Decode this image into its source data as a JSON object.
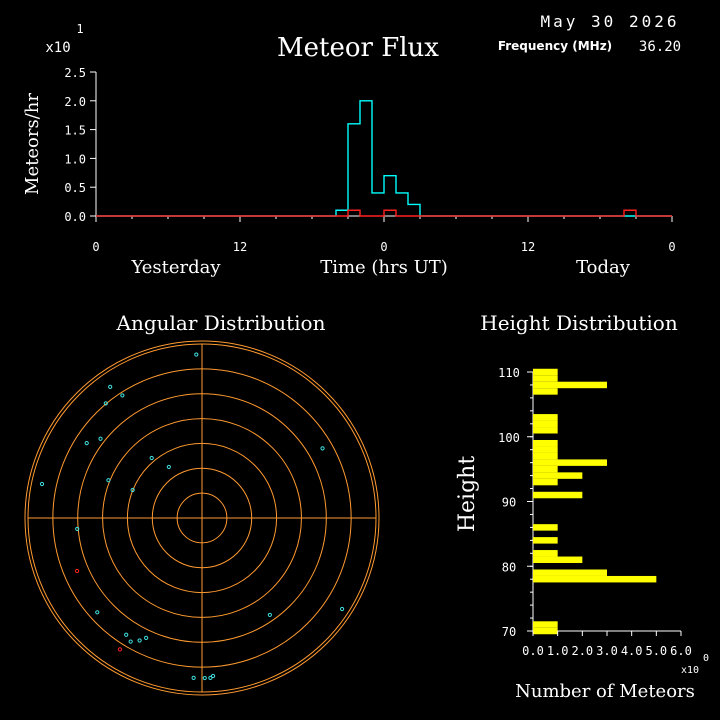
{
  "header": {
    "date": "May 30 2026",
    "frequency_label": "Frequency (MHz)",
    "frequency_value": "36.20"
  },
  "chart_data": [
    {
      "type": "line",
      "title": "Meteor Flux",
      "xlabel": "Time (hrs UT)",
      "ylabel": "Meteors/hr",
      "scale_label": "x10",
      "scale_exponent": "1",
      "x_tick_labels": [
        "0",
        "12",
        "0",
        "12",
        "0"
      ],
      "x_day_labels": [
        "Yesterday",
        "Today"
      ],
      "y_tick_labels": [
        "0.0",
        "0.5",
        "1.0",
        "1.5",
        "2.0",
        "2.5"
      ],
      "ylim": [
        0,
        2.5
      ],
      "xlim": [
        -24,
        24
      ],
      "bin_hours": 1,
      "series": [
        {
          "color": "#00ffff",
          "x": [
            -24,
            -23,
            -22,
            -21,
            -20,
            -19,
            -18,
            -17,
            -16,
            -15,
            -14,
            -13,
            -12,
            -11,
            -10,
            -9,
            -8,
            -7,
            -6,
            -5,
            -4,
            -3,
            -2,
            -1,
            0,
            1,
            2,
            3,
            4,
            5,
            6,
            7,
            8,
            9,
            10,
            11,
            12,
            13,
            14,
            15,
            16,
            17,
            18,
            19,
            20,
            21,
            22,
            23
          ],
          "values": [
            0,
            0,
            0,
            0,
            0,
            0,
            0,
            0,
            0,
            0,
            0,
            0,
            0,
            0,
            0,
            0,
            0,
            0,
            0,
            0,
            0.1,
            1.6,
            2.0,
            0.4,
            0.7,
            0.4,
            0.2,
            0,
            0,
            0,
            0,
            0,
            0,
            0,
            0,
            0,
            0,
            0,
            0,
            0,
            0,
            0,
            0,
            0,
            0,
            0,
            0,
            0
          ]
        },
        {
          "color": "#ff2020",
          "x": [
            -24,
            -23,
            -22,
            -21,
            -20,
            -19,
            -18,
            -17,
            -16,
            -15,
            -14,
            -13,
            -12,
            -11,
            -10,
            -9,
            -8,
            -7,
            -6,
            -5,
            -4,
            -3,
            -2,
            -1,
            0,
            1,
            2,
            3,
            4,
            5,
            6,
            7,
            8,
            9,
            10,
            11,
            12,
            13,
            14,
            15,
            16,
            17,
            18,
            19,
            20,
            21,
            22,
            23
          ],
          "values": [
            0,
            0,
            0,
            0,
            0,
            0,
            0,
            0,
            0,
            0,
            0,
            0,
            0,
            0,
            0,
            0,
            0,
            0,
            0,
            0,
            0,
            0.1,
            0,
            0,
            0.1,
            0,
            0,
            0,
            0,
            0,
            0,
            0,
            0,
            0,
            0,
            0,
            0,
            0,
            0,
            0,
            0,
            0,
            0,
            0,
            0.1,
            0,
            0,
            0
          ]
        }
      ]
    },
    {
      "type": "scatter",
      "title": "Angular Distribution",
      "ring_count": 7,
      "ring_color": "#ff9a30",
      "point_color": "#40e0e0",
      "red_point_color": "#ff2020",
      "points": [
        {
          "az": -2,
          "r": 0.94
        },
        {
          "az": -35,
          "r": 0.92
        },
        {
          "az": -40,
          "r": 0.86
        },
        {
          "az": -33,
          "r": 0.84
        },
        {
          "az": -57,
          "r": 0.79
        },
        {
          "az": -52,
          "r": 0.74
        },
        {
          "az": -78,
          "r": 0.94
        },
        {
          "az": -68,
          "r": 0.58
        },
        {
          "az": -40,
          "r": 0.45
        },
        {
          "az": -33,
          "r": 0.35
        },
        {
          "az": -68,
          "r": 0.43
        },
        {
          "az": -95,
          "r": 0.72
        },
        {
          "az": 60,
          "r": 0.8
        },
        {
          "az": 145,
          "r": 0.68
        },
        {
          "az": 123,
          "r": 0.96
        },
        {
          "az": 210,
          "r": 0.82
        },
        {
          "az": 213,
          "r": 0.8
        },
        {
          "az": 207,
          "r": 0.79
        },
        {
          "az": 205,
          "r": 0.76
        },
        {
          "az": 228,
          "r": 0.81
        },
        {
          "az": 183,
          "r": 0.92
        },
        {
          "az": 179,
          "r": 0.92
        },
        {
          "az": 177,
          "r": 0.92
        },
        {
          "az": 176,
          "r": 0.91
        }
      ],
      "red_points": [
        {
          "az": 247,
          "r": 0.78
        },
        {
          "az": 212,
          "r": 0.89
        }
      ]
    },
    {
      "type": "bar",
      "orientation": "horizontal",
      "title": "Height Distribution",
      "xlabel": "Number of Meteors",
      "ylabel": "Height",
      "scale_label": "x10",
      "scale_exponent": "0",
      "bar_color": "#ffff00",
      "x_tick_labels": [
        "0.0",
        "1.0",
        "2.0",
        "3.0",
        "4.0",
        "5.0",
        "6.0"
      ],
      "xlim": [
        0,
        6
      ],
      "y_tick_labels": [
        "70",
        "80",
        "90",
        "100",
        "110"
      ],
      "ylim": [
        70,
        110
      ],
      "heights": [
        70,
        71,
        72,
        73,
        74,
        75,
        76,
        77,
        78,
        79,
        80,
        81,
        82,
        83,
        84,
        85,
        86,
        87,
        88,
        89,
        90,
        91,
        92,
        93,
        94,
        95,
        96,
        97,
        98,
        99,
        100,
        101,
        102,
        103,
        104,
        105,
        106,
        107,
        108,
        109,
        110
      ],
      "counts": [
        1,
        1,
        0,
        0,
        0,
        0,
        0,
        0,
        5,
        3,
        0,
        2,
        1,
        0,
        1,
        0,
        1,
        0,
        0,
        0,
        0,
        2,
        0,
        1,
        2,
        1,
        3,
        1,
        1,
        1,
        0,
        1,
        1,
        1,
        0,
        0,
        0,
        1,
        3,
        1,
        1
      ]
    }
  ]
}
